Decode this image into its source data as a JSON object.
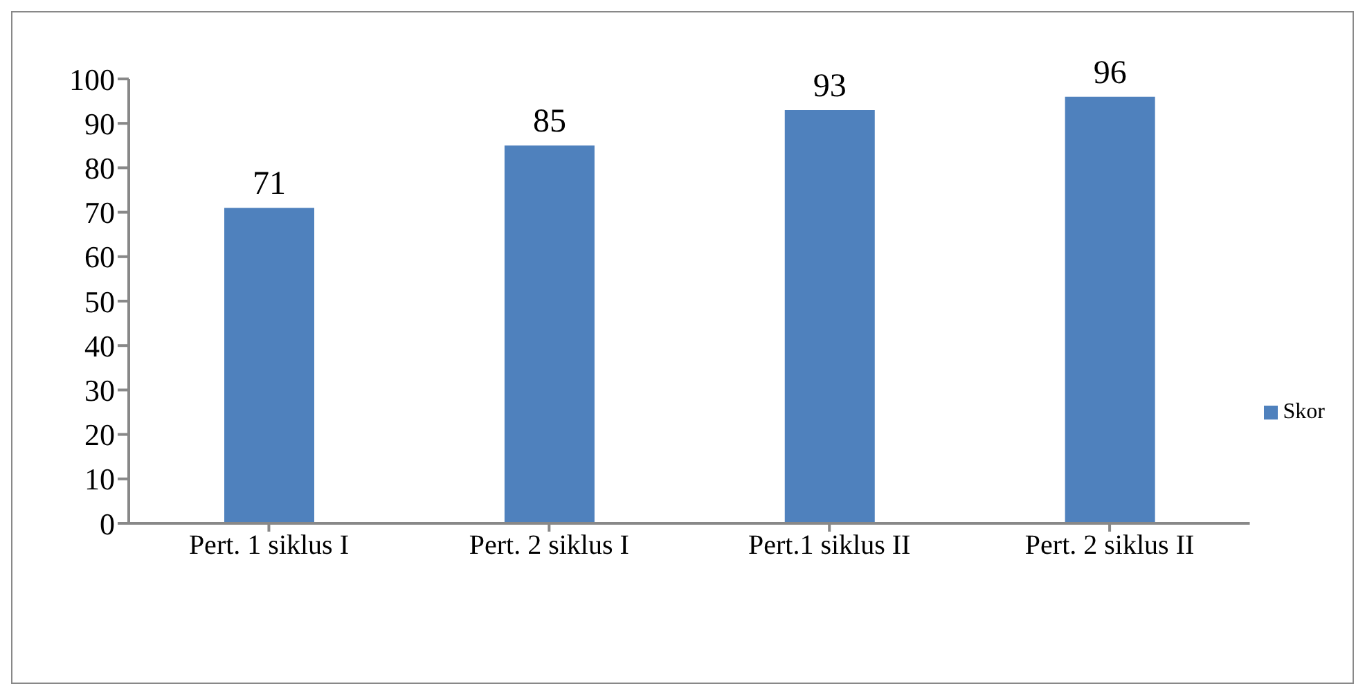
{
  "chart_data": {
    "type": "bar",
    "categories": [
      "Pert. 1 siklus I",
      "Pert. 2 siklus I",
      "Pert.1 siklus II",
      "Pert. 2 siklus II"
    ],
    "series": [
      {
        "name": "Skor",
        "color": "#4f81bd",
        "values": [
          71,
          85,
          93,
          96
        ]
      }
    ],
    "ylim": [
      0,
      100
    ],
    "yticks": [
      0,
      10,
      20,
      30,
      40,
      50,
      60,
      70,
      80,
      90,
      100
    ],
    "data_labels": true,
    "legend": "right",
    "grid": false
  }
}
